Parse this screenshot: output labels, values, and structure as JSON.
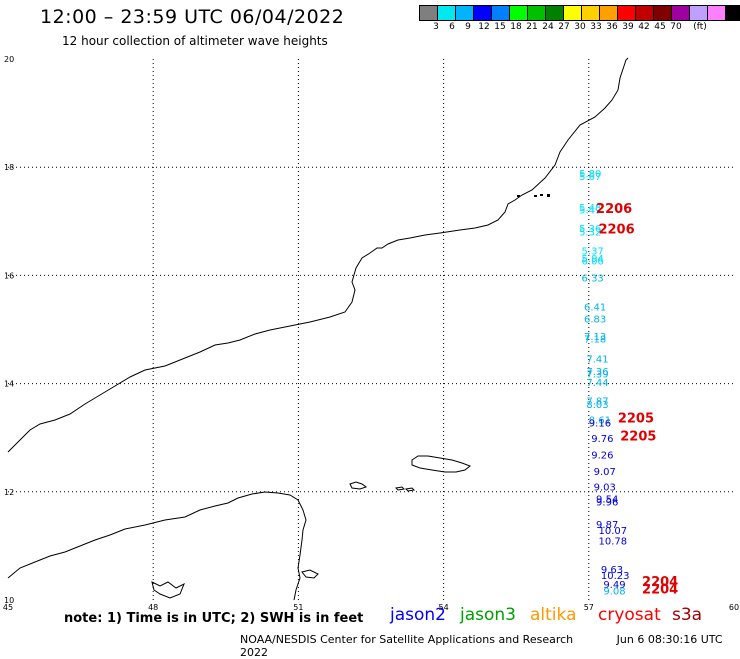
{
  "header": {
    "title": "12:00 – 23:59 UTC 06/04/2022",
    "subtitle": "12 hour collection of altimeter wave heights"
  },
  "legend": {
    "colors": [
      "#7f7f7f",
      "#00e8f0",
      "#00b4ff",
      "#0000ff",
      "#0080ff",
      "#00ff00",
      "#00c000",
      "#008000",
      "#ffff00",
      "#ffd000",
      "#ffa000",
      "#ff0000",
      "#c00000",
      "#800000",
      "#a000a0",
      "#c0a0ff",
      "#ff80ff",
      "#000000"
    ],
    "labels": [
      "3",
      "6",
      "9",
      "12",
      "15",
      "18",
      "21",
      "24",
      "27",
      "30",
      "33",
      "36",
      "39",
      "42",
      "45",
      "70",
      "(ft)"
    ]
  },
  "axes": {
    "x_ticks": [
      "45",
      "48",
      "51",
      "54",
      "57",
      "60"
    ],
    "y_ticks": [
      "20",
      "18",
      "16",
      "14",
      "12",
      "10"
    ]
  },
  "observations": [
    {
      "value": "5.80",
      "color": "#00e0ff",
      "lon": 56.8,
      "lat": 17.82
    },
    {
      "value": "5.67",
      "color": "#00e0ff",
      "lon": 56.8,
      "lat": 17.76
    },
    {
      "value": "5.48",
      "color": "#00e0ff",
      "lon": 56.8,
      "lat": 17.19
    },
    {
      "value": "5.49",
      "color": "#00e0ff",
      "lon": 56.8,
      "lat": 17.14
    },
    {
      "value": "5.36",
      "color": "#00e0ff",
      "lon": 56.8,
      "lat": 16.8
    },
    {
      "value": "5.32",
      "color": "#00e0ff",
      "lon": 56.8,
      "lat": 16.74
    },
    {
      "value": "5.37",
      "color": "#00e0ff",
      "lon": 56.85,
      "lat": 16.39
    },
    {
      "value": "5.94",
      "color": "#00e0ff",
      "lon": 56.85,
      "lat": 16.25
    },
    {
      "value": "6.06",
      "color": "#00e0ff",
      "lon": 56.85,
      "lat": 16.2
    },
    {
      "value": "6.33",
      "color": "#00b4f0",
      "lon": 56.85,
      "lat": 15.89
    },
    {
      "value": "6.41",
      "color": "#00b4f0",
      "lon": 56.9,
      "lat": 15.35
    },
    {
      "value": "6.83",
      "color": "#00b4f0",
      "lon": 56.9,
      "lat": 15.13
    },
    {
      "value": "7.13",
      "color": "#00b4f0",
      "lon": 56.9,
      "lat": 14.81
    },
    {
      "value": "7.18",
      "color": "#00b4f0",
      "lon": 56.9,
      "lat": 14.76
    },
    {
      "value": "7.41",
      "color": "#00b4f0",
      "lon": 56.95,
      "lat": 14.39
    },
    {
      "value": "7.36",
      "color": "#00b4f0",
      "lon": 56.95,
      "lat": 14.16
    },
    {
      "value": "7.39",
      "color": "#00b4f0",
      "lon": 56.95,
      "lat": 14.11
    },
    {
      "value": "7.44",
      "color": "#00b4f0",
      "lon": 56.95,
      "lat": 13.96
    },
    {
      "value": "7.87",
      "color": "#00b4f0",
      "lon": 56.95,
      "lat": 13.61
    },
    {
      "value": "8.03",
      "color": "#00b4f0",
      "lon": 56.95,
      "lat": 13.55
    },
    {
      "value": "8.61",
      "color": "#00b4f0",
      "lon": 57.0,
      "lat": 13.26
    },
    {
      "value": "9.16",
      "color": "#0000e0",
      "lon": 57.0,
      "lat": 13.21
    },
    {
      "value": "9.76",
      "color": "#0000e0",
      "lon": 57.05,
      "lat": 12.92
    },
    {
      "value": "9.26",
      "color": "#0000e0",
      "lon": 57.05,
      "lat": 12.62
    },
    {
      "value": "9.07",
      "color": "#0000e0",
      "lon": 57.1,
      "lat": 12.31
    },
    {
      "value": "9.03",
      "color": "#0000e0",
      "lon": 57.1,
      "lat": 12.02
    },
    {
      "value": "9.54",
      "color": "#0000e0",
      "lon": 57.15,
      "lat": 11.8
    },
    {
      "value": "9.96",
      "color": "#0000e0",
      "lon": 57.15,
      "lat": 11.75
    },
    {
      "value": "9.87",
      "color": "#0000e0",
      "lon": 57.15,
      "lat": 11.33
    },
    {
      "value": "10.07",
      "color": "#0000e0",
      "lon": 57.2,
      "lat": 11.22
    },
    {
      "value": "10.78",
      "color": "#0000e0",
      "lon": 57.2,
      "lat": 11.03
    },
    {
      "value": "9.63",
      "color": "#0000e0",
      "lon": 57.25,
      "lat": 10.5
    },
    {
      "value": "10.23",
      "color": "#0000e0",
      "lon": 57.25,
      "lat": 10.39
    },
    {
      "value": "9.49",
      "color": "#0000e0",
      "lon": 57.3,
      "lat": 10.22
    },
    {
      "value": "9.08",
      "color": "#00b4f0",
      "lon": 57.3,
      "lat": 10.1
    }
  ],
  "time_labels": [
    {
      "value": "2206",
      "lon": 57.15,
      "lat": 17.15
    },
    {
      "value": "2206",
      "lon": 57.2,
      "lat": 16.77
    },
    {
      "value": "2205",
      "lon": 57.6,
      "lat": 13.28
    },
    {
      "value": "2205",
      "lon": 57.65,
      "lat": 12.95
    },
    {
      "value": "2204",
      "lon": 58.1,
      "lat": 10.26
    },
    {
      "value": "2204",
      "lon": 58.1,
      "lat": 10.12
    }
  ],
  "footer": {
    "note": "note: 1) Time is in UTC; 2) SWH is in feet",
    "missions": [
      {
        "name": "jason2",
        "color": "#0000ff"
      },
      {
        "name": "jason3",
        "color": "#00a000"
      },
      {
        "name": "altika",
        "color": "#ff9900"
      },
      {
        "name": "cryosat",
        "color": "#ff0000"
      },
      {
        "name": "s3a",
        "color": "#a00000"
      }
    ],
    "credit": "NOAA/NESDIS Center for Satellite Applications and Research",
    "timestamp": "Jun  6 08:30:16 UTC 2022"
  }
}
